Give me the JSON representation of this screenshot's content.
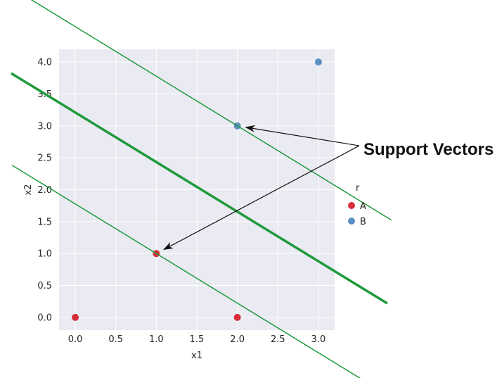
{
  "chart_data": {
    "type": "scatter",
    "title": "",
    "xlabel": "x1",
    "ylabel": "x2",
    "xlim": [
      -0.2,
      3.2
    ],
    "ylim": [
      -0.2,
      4.2
    ],
    "xticks": [
      0.0,
      0.5,
      1.0,
      1.5,
      2.0,
      2.5,
      3.0
    ],
    "xtick_labels": [
      "0.0",
      "0.5",
      "1.0",
      "1.5",
      "2.0",
      "2.5",
      "3.0"
    ],
    "yticks": [
      0.0,
      0.5,
      1.0,
      1.5,
      2.0,
      2.5,
      3.0,
      3.5,
      4.0
    ],
    "ytick_labels": [
      "0.0",
      "0.5",
      "1.0",
      "1.5",
      "2.0",
      "2.5",
      "3.0",
      "3.5",
      "4.0"
    ],
    "grid": true,
    "background": "#eaeaf2",
    "series": [
      {
        "name": "A",
        "color": "#d62f3a",
        "points": [
          {
            "x": 0,
            "y": 0
          },
          {
            "x": 1,
            "y": 1
          },
          {
            "x": 2,
            "y": 0
          }
        ]
      },
      {
        "name": "B",
        "color": "#5b8fc4",
        "points": [
          {
            "x": 2,
            "y": 3
          },
          {
            "x": 3,
            "y": 4
          }
        ]
      }
    ],
    "lines": [
      {
        "role": "upper-margin",
        "slope": -0.777,
        "intercept": 4.555,
        "x_range": [
          -0.75,
          3.9
        ],
        "width": 1.5,
        "color": "#1f9a3c"
      },
      {
        "role": "decision-boundary",
        "slope": -0.777,
        "intercept": 3.21,
        "x_range": [
          -0.79,
          3.85
        ],
        "width": 3.5,
        "color": "#1f9a3c"
      },
      {
        "role": "lower-margin",
        "slope": -0.777,
        "intercept": 1.777,
        "x_range": [
          -0.78,
          3.85
        ],
        "width": 1.5,
        "color": "#1f9a3c"
      }
    ],
    "legend": {
      "title": "r",
      "placement": "right",
      "entries": [
        "A",
        "B"
      ]
    },
    "annotation": {
      "text": "Support Vectors",
      "targets": [
        {
          "x": 2,
          "y": 3
        },
        {
          "x": 1,
          "y": 1
        }
      ]
    }
  }
}
